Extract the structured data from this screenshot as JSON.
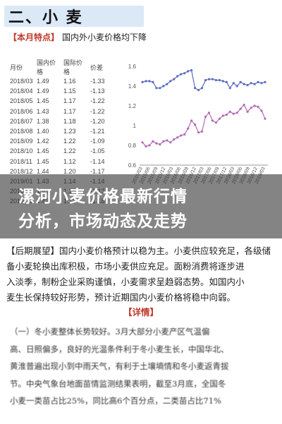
{
  "section": {
    "title": "二、小 麦"
  },
  "feature": {
    "tag": "【本月特点】",
    "text": "国内外小麦价格均下降"
  },
  "table": {
    "headers": [
      "月份",
      "国内价格",
      "国际价格",
      "价差"
    ],
    "rows": [
      [
        "2018/03",
        "1.49",
        "1.16",
        "-1.33"
      ],
      [
        "2018/04",
        "1.49",
        "1.15",
        "-1.13"
      ],
      [
        "2018/05",
        "1.45",
        "1.17",
        "-1.22"
      ],
      [
        "2018/06",
        "1.43",
        "1.17",
        "-1.22"
      ],
      [
        "2018/07",
        "1.38",
        "1.18",
        "-1.20"
      ],
      [
        "2018/08",
        "1.40",
        "1.23",
        "-1.21"
      ],
      [
        "2018/09",
        "1.42",
        "1.22",
        "-1.09"
      ],
      [
        "2018/10",
        "1.45",
        "1.22",
        "-1.05"
      ],
      [
        "2018/11",
        "1.45",
        "1.12",
        "-1.14"
      ],
      [
        "2018/12",
        "1.44",
        "1.20",
        "-1.17"
      ],
      [
        "2019/01",
        "1.43",
        "1.14",
        "-1.14"
      ],
      [
        "2019/02",
        "1.43",
        "1.16",
        "-1.13"
      ],
      [
        "2019/03",
        "1.42",
        "1.12",
        "-1.18"
      ]
    ]
  },
  "chart_data": {
    "type": "line",
    "ylim": [
      0.6,
      1.6
    ],
    "yticks": [
      "1.6",
      "1.4",
      "1.2",
      "1",
      "0.8",
      "0.6"
    ],
    "xticks": [
      "2015/03",
      "2015/06",
      "2015/09",
      "2015/12",
      "2016/03",
      "2016/06",
      "2016/09",
      "2016/12",
      "2017/03",
      "2017/06",
      "2017/09",
      "2017/12",
      "2018/03",
      "2018/06",
      "2018/09",
      "2018/12",
      "2019/03"
    ],
    "series": [
      {
        "color": "#5b6bc0",
        "values": [
          1.44,
          1.45,
          1.45,
          1.44,
          1.38,
          1.38,
          1.4,
          1.42,
          1.45,
          1.47,
          1.5,
          1.52,
          1.53,
          1.55,
          1.56,
          1.38,
          1.36,
          1.38,
          1.46,
          1.47,
          1.47,
          1.46,
          1.46,
          1.45,
          1.44,
          1.38,
          1.43,
          1.4,
          1.44,
          1.42,
          1.41,
          1.43,
          1.42,
          1.44,
          1.43,
          1.44
        ]
      },
      {
        "color": "#b46ab4",
        "values": [
          0.83,
          0.79,
          0.8,
          0.84,
          0.82,
          0.81,
          0.84,
          0.85,
          0.83,
          0.86,
          0.88,
          0.9,
          0.91,
          0.97,
          1.05,
          1.01,
          0.93,
          0.94,
          1.09,
          1.13,
          1.05,
          1.03,
          1.07,
          1.1,
          1.11,
          1.14,
          1.12,
          1.13,
          1.17,
          1.21,
          1.14,
          1.18,
          1.2,
          1.19,
          1.15,
          1.07
        ]
      }
    ]
  },
  "overlay": {
    "line1": "漯河小麦价格最新行情",
    "line2": "分析，市场动态及走势"
  },
  "body": {
    "l1": "【后期展望】国内小麦价格预计以稳为主。小麦供应较充足，各级储",
    "l2": "备小麦轮换出库积极，市场小麦供应充足。面粉消费将逐步进",
    "l3": "入淡季，制粉企业采购谨慎，小麦需求呈趋弱态势。如国内小",
    "l4": "麦生长保持较好形势，预计近期国内小麦价格将稳中向弱。"
  },
  "detail": {
    "title": "【详情】"
  },
  "detail_text": {
    "l1": "（一）冬小麦整体长势较好。3月大部分小麦产区气温偏",
    "l2": "高、日照偏多，良好的光温条件利于冬小麦生长，中国华北、",
    "l3": "黄淮普遍出现小到中雨天气，有利于土壤墒情和冬小麦返青拔",
    "l4": "节。中央气象台地面苗情监测结果表明，截至3月底，全国冬",
    "l5": "小麦一类苗占比25%，同比高6个百分点，二类苗占比71%"
  }
}
